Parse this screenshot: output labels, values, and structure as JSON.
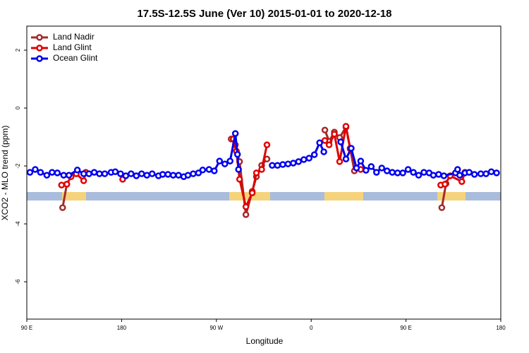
{
  "chart_data": {
    "type": "line",
    "title": "17.5S-12.5S June (Ver 10)   2015-01-01 to 2020-12-18",
    "x_label": "Longitude",
    "y_label": "XCO2 - MLO trend (ppm)",
    "xlim": [
      90,
      540
    ],
    "ylim": [
      -7.29,
      2.83
    ],
    "xticks": [
      {
        "value": 90,
        "label": "90 E"
      },
      180,
      {
        "value": 270,
        "label": "90 W"
      },
      {
        "value": 360,
        "label": "0"
      },
      {
        "value": 450,
        "label": "90 E"
      },
      {
        "value": 540,
        "label": "180"
      }
    ],
    "yticks": [
      2,
      0,
      -2,
      -4,
      -6
    ],
    "legend": "top-left",
    "series": [
      {
        "name": "Land Nadir",
        "color": "#a52a2a",
        "x": [
          124,
          128,
          null,
          284,
          288,
          292,
          298,
          304,
          308,
          313,
          318,
          null,
          373,
          377,
          382,
          387,
          393,
          397,
          401,
          null,
          484,
          488
        ],
        "values": [
          -3.44,
          -2.63,
          null,
          -1.07,
          -1.27,
          -1.85,
          -3.68,
          -2.88,
          -2.37,
          -1.98,
          -1.76,
          null,
          -0.76,
          -1.15,
          -0.83,
          -1.02,
          -0.66,
          -1.41,
          -2.17,
          null,
          -3.44,
          -2.61
        ]
      },
      {
        "name": "Land Glint",
        "color": "#e00000",
        "x": [
          123,
          128,
          132,
          137,
          144,
          146,
          null,
          181,
          null,
          286,
          289,
          292,
          298,
          304,
          308,
          313,
          318,
          null,
          373,
          377,
          382,
          387,
          393,
          397,
          403,
          407,
          null,
          483,
          487,
          492,
          503,
          506
        ],
        "values": [
          -2.66,
          -2.63,
          -2.37,
          -2.27,
          -2.51,
          -2.22,
          null,
          -2.46,
          null,
          -1.07,
          -1.49,
          -2.46,
          -3.41,
          -2.93,
          -2.24,
          -2.12,
          -1.27,
          null,
          -1.12,
          -1.27,
          -0.9,
          -1.85,
          -0.63,
          -1.39,
          -2.07,
          -2.12,
          null,
          -2.66,
          -2.63,
          -2.34,
          -2.54,
          -2.22
        ]
      },
      {
        "name": "Ocean Glint",
        "color": "#0000ee",
        "x": [
          93,
          98,
          103,
          109,
          114,
          119,
          125,
          130,
          138,
          144,
          149,
          154,
          159,
          164,
          170,
          174,
          179,
          184,
          189,
          194,
          199,
          204,
          209,
          215,
          219,
          224,
          229,
          234,
          239,
          243,
          248,
          253,
          257,
          263,
          268,
          273,
          278,
          283,
          288,
          290,
          291,
          null,
          323,
          328,
          333,
          338,
          343,
          348,
          353,
          358,
          363,
          368,
          372,
          null,
          388,
          393,
          398,
          403,
          407,
          412,
          417,
          422,
          427,
          432,
          437,
          442,
          447,
          452,
          457,
          462,
          467,
          472,
          476,
          481,
          486,
          497,
          499,
          501,
          506,
          510,
          515,
          521,
          526,
          531,
          536
        ],
        "values": [
          -2.22,
          -2.12,
          -2.22,
          -2.32,
          -2.22,
          -2.24,
          -2.32,
          -2.32,
          -2.14,
          -2.27,
          -2.27,
          -2.22,
          -2.27,
          -2.27,
          -2.22,
          -2.2,
          -2.27,
          -2.34,
          -2.27,
          -2.34,
          -2.27,
          -2.32,
          -2.27,
          -2.34,
          -2.29,
          -2.29,
          -2.32,
          -2.32,
          -2.37,
          -2.32,
          -2.27,
          -2.24,
          -2.14,
          -2.12,
          -2.17,
          -1.83,
          -1.93,
          -1.83,
          -0.88,
          -1.6,
          -2.12,
          null,
          -1.98,
          -1.98,
          -1.95,
          -1.93,
          -1.9,
          -1.85,
          -1.78,
          -1.73,
          -1.61,
          -1.2,
          -1.51,
          null,
          -1.17,
          -1.76,
          -1.39,
          -2.07,
          -1.83,
          -2.15,
          -2.02,
          -2.22,
          -2.07,
          -2.17,
          -2.22,
          -2.24,
          -2.24,
          -2.12,
          -2.22,
          -2.32,
          -2.22,
          -2.24,
          -2.32,
          -2.29,
          -2.34,
          -2.24,
          -2.12,
          -2.32,
          -2.24,
          -2.22,
          -2.29,
          -2.27,
          -2.27,
          -2.2,
          -2.24
        ]
      }
    ]
  }
}
